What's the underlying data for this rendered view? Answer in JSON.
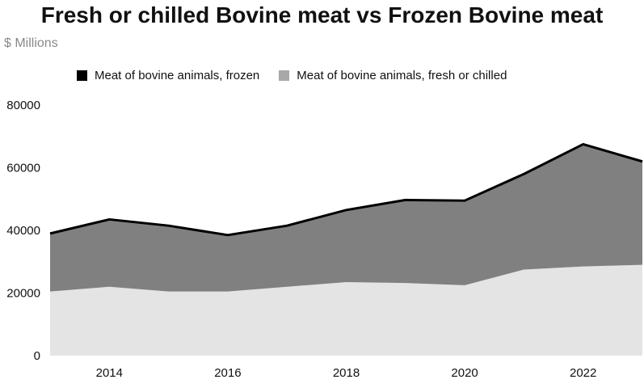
{
  "chart_data": {
    "type": "area",
    "title": "Fresh or chilled Bovine meat vs Frozen Bovine meat",
    "subtitle": "$ Millions",
    "xlabel": "",
    "ylabel": "",
    "x": [
      2013,
      2014,
      2015,
      2016,
      2017,
      2018,
      2019,
      2020,
      2021,
      2022,
      2023
    ],
    "x_ticks": [
      "2014",
      "2016",
      "2018",
      "2020",
      "2022"
    ],
    "x_tick_values": [
      2014,
      2016,
      2018,
      2020,
      2022
    ],
    "y_ticks": [
      "0",
      "20000",
      "40000",
      "60000",
      "80000"
    ],
    "y_tick_values": [
      0,
      20000,
      40000,
      60000,
      80000
    ],
    "ylim": [
      0,
      80000
    ],
    "stacked": true,
    "grid": false,
    "legend_position": "top",
    "series": [
      {
        "name": "Meat of bovine animals, frozen",
        "color": "#808080",
        "swatch_color": "#000000",
        "values": [
          18500,
          21500,
          21000,
          18000,
          19500,
          23000,
          26500,
          27000,
          30500,
          39000,
          33000
        ]
      },
      {
        "name": "Meat of bovine animals, fresh or chilled",
        "color": "#e4e4e4",
        "swatch_color": "#a8a8a8",
        "values": [
          20500,
          22000,
          20500,
          20500,
          22000,
          23500,
          23200,
          22500,
          27500,
          28500,
          29000
        ]
      }
    ],
    "total_line_color": "#000000"
  }
}
